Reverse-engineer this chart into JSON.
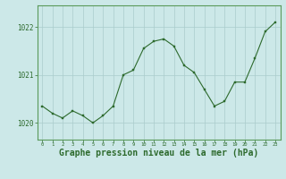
{
  "x": [
    0,
    1,
    2,
    3,
    4,
    5,
    6,
    7,
    8,
    9,
    10,
    11,
    12,
    13,
    14,
    15,
    16,
    17,
    18,
    19,
    20,
    21,
    22,
    23
  ],
  "y": [
    1020.35,
    1020.2,
    1020.1,
    1020.25,
    1020.15,
    1020.0,
    1020.15,
    1020.35,
    1021.0,
    1021.1,
    1021.55,
    1021.7,
    1021.75,
    1021.6,
    1021.2,
    1021.05,
    1020.7,
    1020.35,
    1020.45,
    1020.85,
    1020.85,
    1021.35,
    1021.9,
    1022.1
  ],
  "line_color": "#2d6a2d",
  "marker_color": "#2d6a2d",
  "bg_color": "#cce8e8",
  "grid_color": "#aacccc",
  "xlabel": "Graphe pression niveau de la mer (hPa)",
  "yticks": [
    1020,
    1021,
    1022
  ],
  "xticks": [
    0,
    1,
    2,
    3,
    4,
    5,
    6,
    7,
    8,
    9,
    10,
    11,
    12,
    13,
    14,
    15,
    16,
    17,
    18,
    19,
    20,
    21,
    22,
    23
  ],
  "ylim": [
    1019.65,
    1022.45
  ],
  "xlim": [
    -0.5,
    23.5
  ],
  "tick_color": "#2d6a2d",
  "xlabel_fontsize": 7,
  "xlabel_fontweight": "bold",
  "axis_color": "#5a9a5a"
}
